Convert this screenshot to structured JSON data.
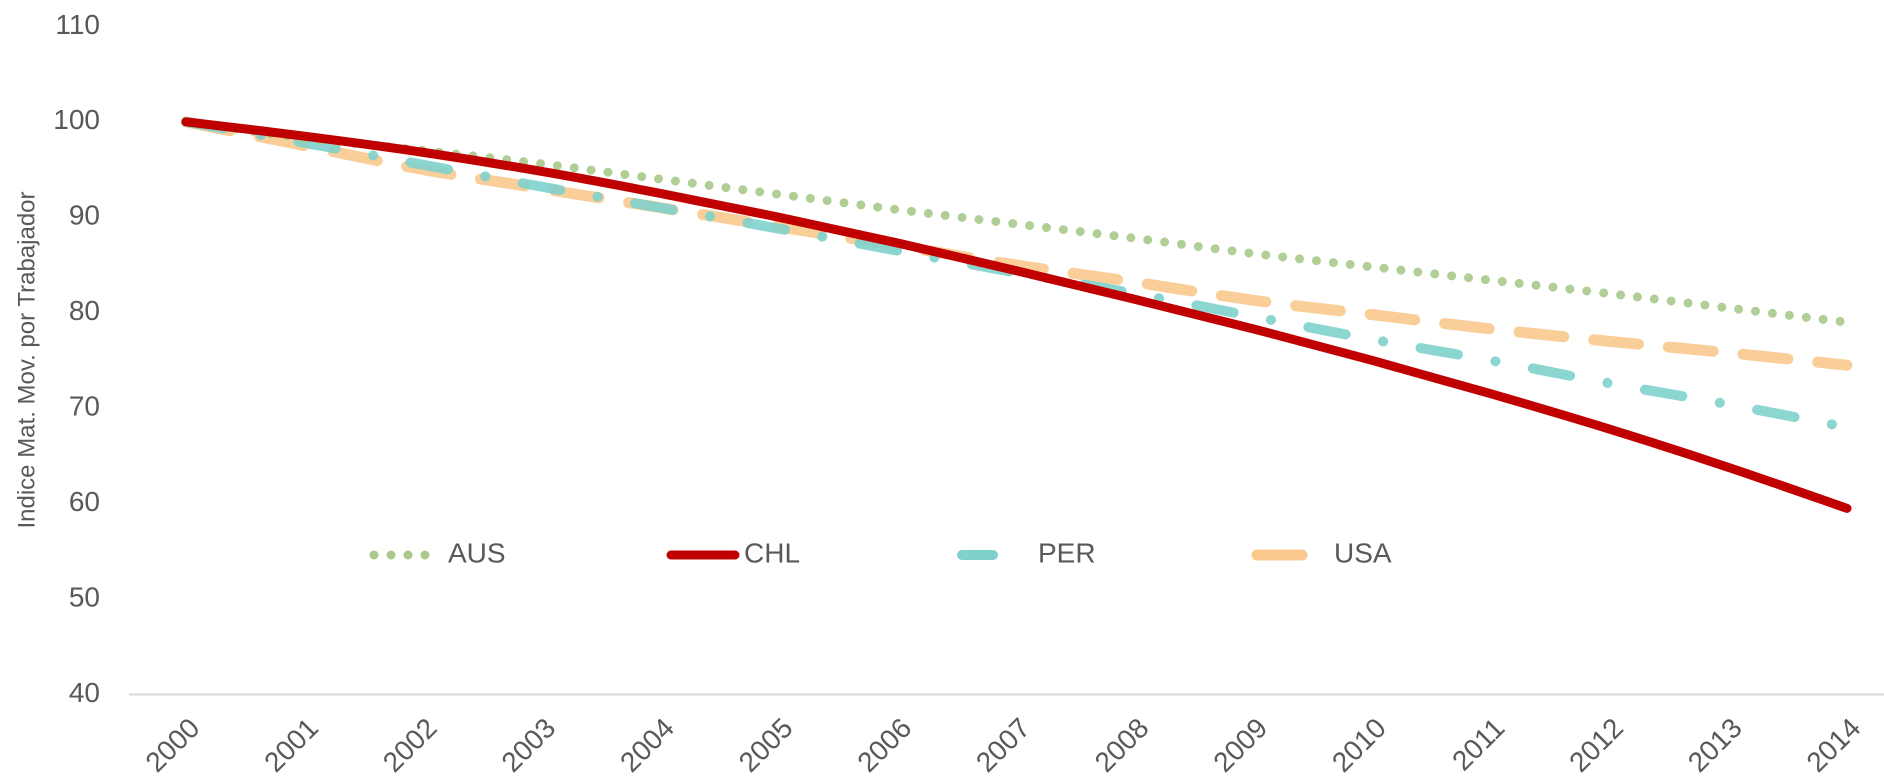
{
  "chart_data": {
    "type": "line",
    "y_label": "Indice Mat. Mov. por Trabajador",
    "categories": [
      "2000",
      "2001",
      "2002",
      "2003",
      "2004",
      "2005",
      "2006",
      "2007",
      "2008",
      "2009",
      "2010",
      "2011",
      "2012",
      "2013",
      "2014"
    ],
    "series": [
      {
        "name": "AUS",
        "color": "#a9c98b",
        "dash": "dotted",
        "values": [
          100,
          98.3,
          97,
          95.6,
          94,
          92.4,
          90.8,
          89.3,
          87.8,
          86.2,
          84.8,
          83.4,
          82,
          80.5,
          79
        ]
      },
      {
        "name": "CHL",
        "color": "#c00000",
        "dash": "solid",
        "values": [
          100,
          98.5,
          96.8,
          94.8,
          92.5,
          90,
          87.3,
          84.4,
          81.4,
          78.3,
          75,
          71.5,
          67.8,
          63.8,
          59.5
        ]
      },
      {
        "name": "PER",
        "color": "#7fd1cc",
        "dash": "dashdot",
        "values": [
          100,
          97.8,
          95.5,
          93.2,
          91,
          88.8,
          86.5,
          84.2,
          82,
          79.6,
          77.2,
          75,
          72.6,
          70.4,
          68
        ]
      },
      {
        "name": "USA",
        "color": "#fac98e",
        "dash": "longdash",
        "values": [
          100,
          97.5,
          95,
          93,
          91,
          89,
          87,
          85,
          83.2,
          81.3,
          79.8,
          78.3,
          77,
          75.8,
          74.5
        ]
      }
    ],
    "ylim": [
      40,
      110
    ],
    "yticks": [
      40,
      50,
      60,
      70,
      80,
      90,
      100,
      110
    ],
    "grid": false,
    "legend": "inside-bottom"
  }
}
